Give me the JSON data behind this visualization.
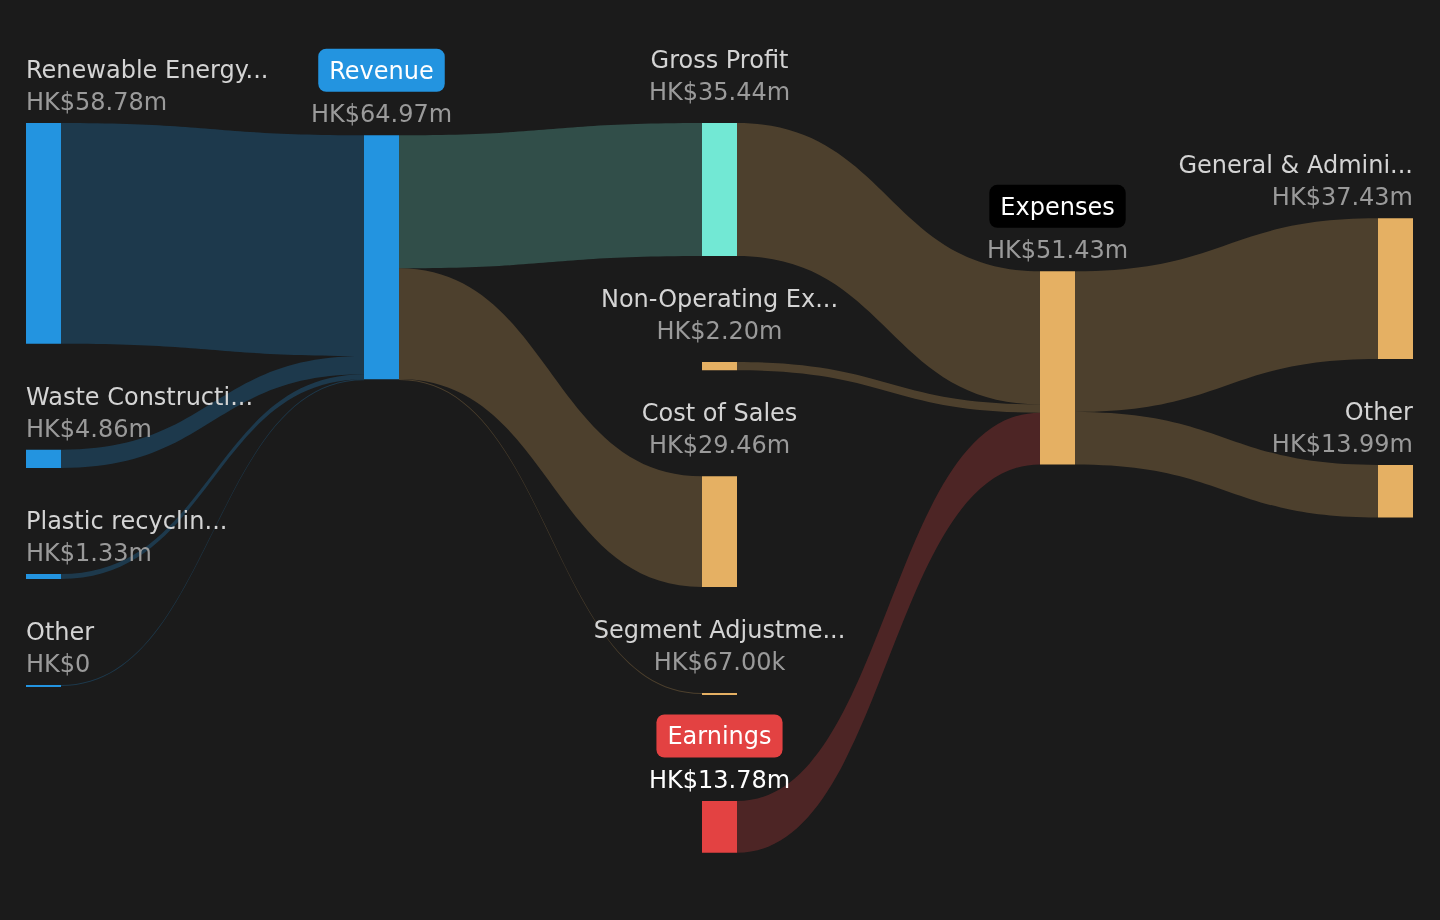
{
  "chart_data": {
    "type": "other",
    "categories": [
      "Renewable Energy...",
      "Waste Constructi...",
      "Plastic recyclin...",
      "Other",
      "Revenue",
      "Gross Profit",
      "Non-Operating Ex...",
      "Cost of Sales",
      "Segment Adjustme...",
      "Earnings",
      "Expenses",
      "General & Admini...",
      "Other"
    ],
    "series": [
      {
        "values": [
          58780000,
          4860000,
          1330000,
          0,
          64970000,
          35440000,
          null,
          29460000,
          67000,
          null,
          null,
          null,
          null
        ],
        "value_labels": [
          "HK$58.78m",
          "HK$4.86m",
          "HK$1.33m",
          "HK$0",
          "HK$64.97m",
          "HK$35.44m",
          null,
          "HK$29.46m",
          "HK$67.00k",
          null,
          null,
          null,
          null
        ],
        "colors": [
          "#2394e0",
          "#2394e0",
          "#2394e0",
          "#2394e0",
          "#2394e0",
          "#72e8d4",
          null,
          "#e5b063",
          "#e5b063",
          null,
          null,
          null,
          null
        ]
      },
      {
        "values": [
          null,
          null,
          null,
          null,
          null,
          null,
          2200000,
          null,
          null,
          13780000,
          51430000,
          37430000,
          13990000
        ],
        "value_labels": [
          null,
          null,
          null,
          null,
          null,
          null,
          "HK$2.20m",
          null,
          null,
          "HK$13.78m",
          "HK$51.43m",
          "HK$37.43m",
          "HK$13.99m"
        ],
        "colors": [
          null,
          null,
          null,
          null,
          null,
          "#e5b063",
          "#e5b063",
          null,
          null,
          "#e34242",
          "#e5b063",
          "#e5b063",
          "#e5b063"
        ]
      }
    ]
  }
}
